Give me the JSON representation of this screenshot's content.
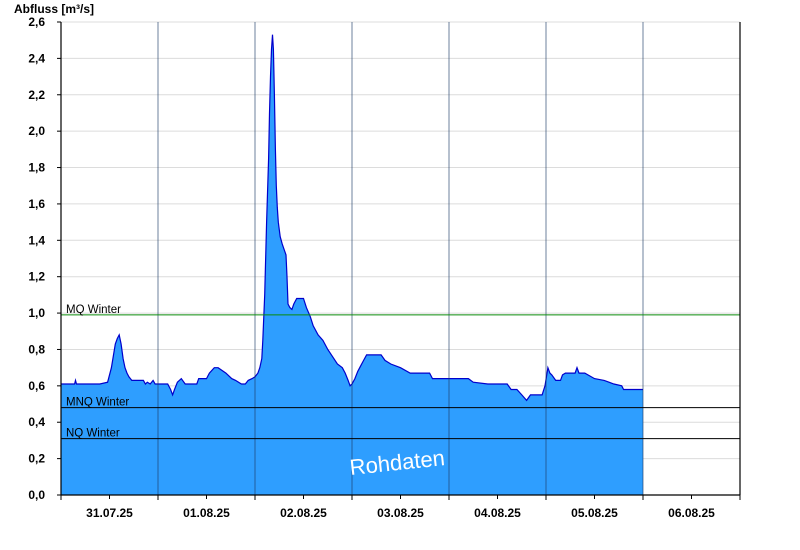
{
  "chart_data": {
    "type": "area",
    "ylabel": "Abfluss [m³/s]",
    "ylim": [
      0,
      2.6
    ],
    "yticks": [
      "0,0",
      "0,2",
      "0,4",
      "0,6",
      "0,8",
      "1,0",
      "1,2",
      "1,4",
      "1,6",
      "1,8",
      "2,0",
      "2,2",
      "2,4",
      "2,6"
    ],
    "xlim_days": [
      0,
      7
    ],
    "xticks": [
      "31.07.25",
      "01.08.25",
      "02.08.25",
      "03.08.25",
      "04.08.25",
      "05.08.25",
      "06.08.25"
    ],
    "grid": true,
    "watermark": "Rohdaten",
    "colors": {
      "fill": "#2E9EFF",
      "line": "#0000CC",
      "mq": "#0A8A0A",
      "ref": "#000000",
      "grid": "#dcdcdc"
    },
    "reference_lines": [
      {
        "name": "MQ Winter",
        "value": 0.99
      },
      {
        "name": "MNQ Winter",
        "value": 0.48
      },
      {
        "name": "NQ Winter",
        "value": 0.31
      }
    ],
    "series": [
      {
        "name": "Abfluss",
        "points": [
          [
            0.0,
            0.61
          ],
          [
            0.14,
            0.61
          ],
          [
            0.15,
            0.63
          ],
          [
            0.16,
            0.61
          ],
          [
            0.4,
            0.61
          ],
          [
            0.48,
            0.62
          ],
          [
            0.52,
            0.7
          ],
          [
            0.56,
            0.83
          ],
          [
            0.58,
            0.86
          ],
          [
            0.6,
            0.88
          ],
          [
            0.62,
            0.83
          ],
          [
            0.64,
            0.75
          ],
          [
            0.66,
            0.7
          ],
          [
            0.68,
            0.67
          ],
          [
            0.7,
            0.65
          ],
          [
            0.73,
            0.63
          ],
          [
            0.78,
            0.63
          ],
          [
            0.85,
            0.63
          ],
          [
            0.87,
            0.61
          ],
          [
            0.89,
            0.62
          ],
          [
            0.92,
            0.61
          ],
          [
            0.95,
            0.63
          ],
          [
            0.97,
            0.61
          ],
          [
            1.1,
            0.61
          ],
          [
            1.13,
            0.58
          ],
          [
            1.15,
            0.55
          ],
          [
            1.17,
            0.58
          ],
          [
            1.2,
            0.62
          ],
          [
            1.24,
            0.64
          ],
          [
            1.28,
            0.61
          ],
          [
            1.33,
            0.61
          ],
          [
            1.4,
            0.61
          ],
          [
            1.42,
            0.64
          ],
          [
            1.5,
            0.64
          ],
          [
            1.53,
            0.67
          ],
          [
            1.58,
            0.7
          ],
          [
            1.62,
            0.7
          ],
          [
            1.7,
            0.67
          ],
          [
            1.76,
            0.64
          ],
          [
            1.8,
            0.63
          ],
          [
            1.86,
            0.61
          ],
          [
            1.9,
            0.61
          ],
          [
            1.93,
            0.63
          ],
          [
            1.97,
            0.64
          ],
          [
            2.0,
            0.65
          ],
          [
            2.03,
            0.67
          ],
          [
            2.05,
            0.7
          ],
          [
            2.07,
            0.75
          ],
          [
            2.08,
            0.85
          ],
          [
            2.1,
            1.1
          ],
          [
            2.12,
            1.5
          ],
          [
            2.14,
            1.85
          ],
          [
            2.15,
            2.1
          ],
          [
            2.16,
            2.3
          ],
          [
            2.17,
            2.45
          ],
          [
            2.18,
            2.53
          ],
          [
            2.19,
            2.45
          ],
          [
            2.2,
            2.2
          ],
          [
            2.21,
            1.9
          ],
          [
            2.22,
            1.7
          ],
          [
            2.23,
            1.58
          ],
          [
            2.24,
            1.5
          ],
          [
            2.26,
            1.42
          ],
          [
            2.28,
            1.38
          ],
          [
            2.3,
            1.35
          ],
          [
            2.32,
            1.32
          ],
          [
            2.33,
            1.2
          ],
          [
            2.34,
            1.05
          ],
          [
            2.36,
            1.03
          ],
          [
            2.38,
            1.02
          ],
          [
            2.4,
            1.05
          ],
          [
            2.43,
            1.08
          ],
          [
            2.5,
            1.08
          ],
          [
            2.53,
            1.03
          ],
          [
            2.57,
            0.98
          ],
          [
            2.6,
            0.93
          ],
          [
            2.65,
            0.88
          ],
          [
            2.7,
            0.85
          ],
          [
            2.75,
            0.8
          ],
          [
            2.8,
            0.76
          ],
          [
            2.85,
            0.72
          ],
          [
            2.9,
            0.7
          ],
          [
            2.93,
            0.67
          ],
          [
            2.96,
            0.63
          ],
          [
            2.98,
            0.6
          ],
          [
            3.0,
            0.61
          ],
          [
            3.03,
            0.64
          ],
          [
            3.06,
            0.68
          ],
          [
            3.09,
            0.71
          ],
          [
            3.12,
            0.74
          ],
          [
            3.15,
            0.77
          ],
          [
            3.3,
            0.77
          ],
          [
            3.34,
            0.74
          ],
          [
            3.4,
            0.72
          ],
          [
            3.5,
            0.7
          ],
          [
            3.6,
            0.67
          ],
          [
            3.8,
            0.67
          ],
          [
            3.83,
            0.64
          ],
          [
            4.0,
            0.64
          ],
          [
            4.2,
            0.64
          ],
          [
            4.25,
            0.62
          ],
          [
            4.4,
            0.61
          ],
          [
            4.6,
            0.61
          ],
          [
            4.64,
            0.58
          ],
          [
            4.7,
            0.58
          ],
          [
            4.75,
            0.55
          ],
          [
            4.8,
            0.52
          ],
          [
            4.84,
            0.55
          ],
          [
            4.88,
            0.55
          ],
          [
            4.96,
            0.55
          ],
          [
            4.99,
            0.6
          ],
          [
            5.02,
            0.7
          ],
          [
            5.04,
            0.67
          ],
          [
            5.06,
            0.66
          ],
          [
            5.1,
            0.63
          ],
          [
            5.15,
            0.63
          ],
          [
            5.17,
            0.66
          ],
          [
            5.2,
            0.67
          ],
          [
            5.3,
            0.67
          ],
          [
            5.32,
            0.7
          ],
          [
            5.34,
            0.67
          ],
          [
            5.4,
            0.67
          ],
          [
            5.5,
            0.64
          ],
          [
            5.6,
            0.63
          ],
          [
            5.7,
            0.61
          ],
          [
            5.78,
            0.6
          ],
          [
            5.8,
            0.58
          ],
          [
            6.0,
            0.58
          ]
        ]
      }
    ]
  }
}
